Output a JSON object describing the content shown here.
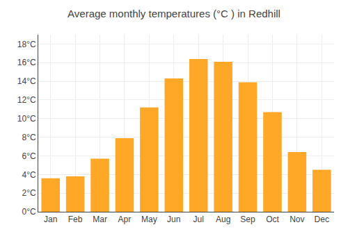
{
  "chart_data": {
    "type": "bar",
    "title": "Average monthly temperatures (°C ) in Redhill",
    "categories": [
      "Jan",
      "Feb",
      "Mar",
      "Apr",
      "May",
      "Jun",
      "Jul",
      "Aug",
      "Sep",
      "Oct",
      "Nov",
      "Dec"
    ],
    "values": [
      3.6,
      3.8,
      5.7,
      7.9,
      11.2,
      14.3,
      16.4,
      16.1,
      13.9,
      10.7,
      6.4,
      4.5
    ],
    "color": "#FFA726",
    "ylim": [
      0,
      19
    ],
    "yticks": [
      {
        "value": 0,
        "label": "0°C"
      },
      {
        "value": 2,
        "label": "2°C"
      },
      {
        "value": 4,
        "label": "4°C"
      },
      {
        "value": 6,
        "label": "6°C"
      },
      {
        "value": 8,
        "label": "8°C"
      },
      {
        "value": 10,
        "label": "10°C"
      },
      {
        "value": 12,
        "label": "12°C"
      },
      {
        "value": 14,
        "label": "14°C"
      },
      {
        "value": 16,
        "label": "16°C"
      },
      {
        "value": 18,
        "label": "18°C"
      }
    ],
    "grid": true
  }
}
